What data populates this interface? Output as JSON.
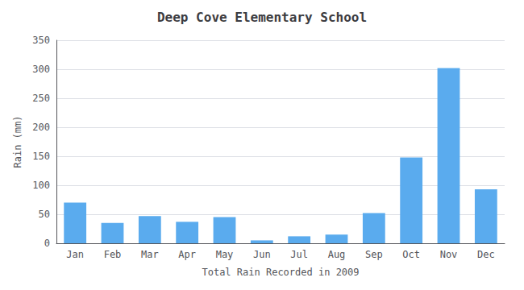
{
  "chart_data": {
    "type": "bar",
    "title": "Deep Cove Elementary School",
    "xlabel": "Total Rain Recorded in 2009",
    "ylabel": "Rain (mm)",
    "categories": [
      "Jan",
      "Feb",
      "Mar",
      "Apr",
      "May",
      "Jun",
      "Jul",
      "Aug",
      "Sep",
      "Oct",
      "Nov",
      "Dec"
    ],
    "values": [
      70,
      35,
      47,
      37,
      45,
      5,
      12,
      15,
      52,
      148,
      302,
      93
    ],
    "color": "#5aabee",
    "ylim": [
      0,
      350
    ],
    "yticks": [
      0,
      50,
      100,
      150,
      200,
      250,
      300,
      350
    ],
    "grid": true
  }
}
